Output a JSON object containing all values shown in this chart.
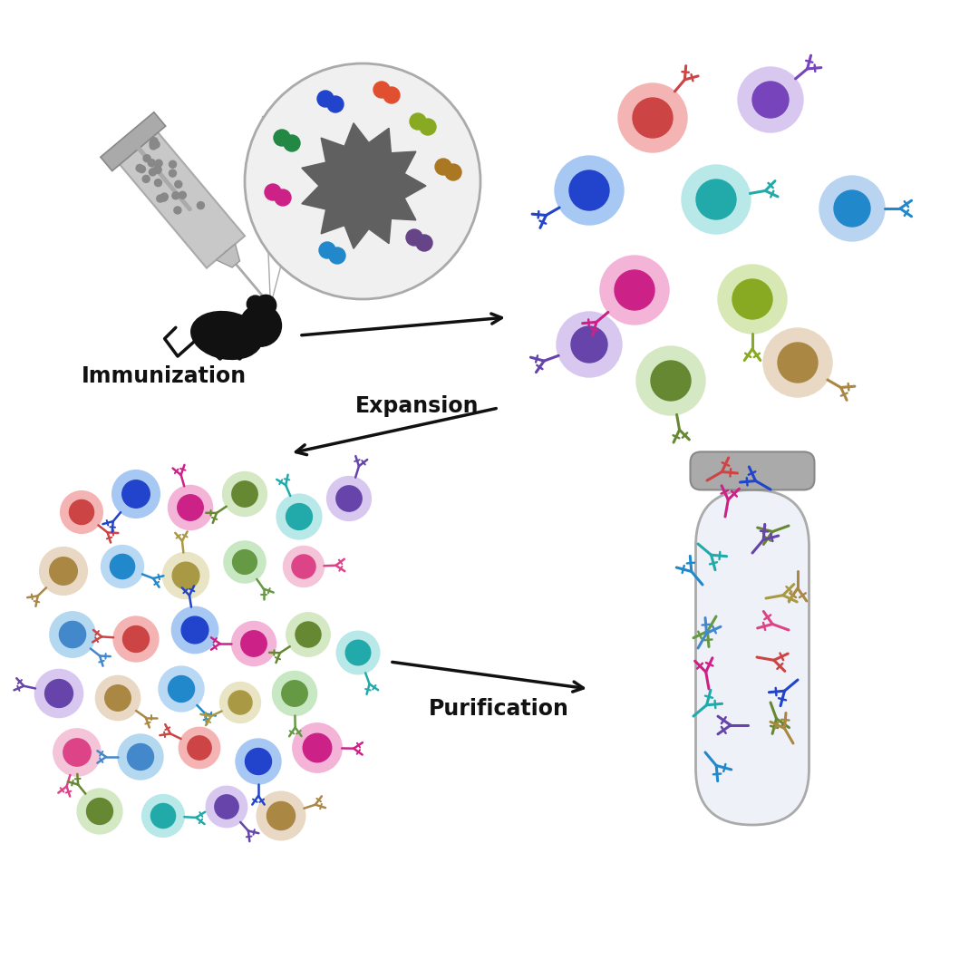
{
  "bg_color": "#ffffff",
  "cell_colors": [
    {
      "outer": "#f4a8a8",
      "inner": "#cc4444",
      "ab": "#cc4444"
    },
    {
      "outer": "#a8c4f4",
      "inner": "#2244cc",
      "ab": "#2244cc"
    },
    {
      "outer": "#f4a8d8",
      "inner": "#cc2288",
      "ab": "#cc2288"
    },
    {
      "outer": "#c8e8a8",
      "inner": "#668822",
      "ab": "#668822"
    },
    {
      "outer": "#b8e8d8",
      "inner": "#228866",
      "ab": "#228866"
    },
    {
      "outer": "#d8c8f0",
      "inner": "#6644aa",
      "ab": "#6644aa"
    },
    {
      "outer": "#f0d4b8",
      "inner": "#aa7744",
      "ab": "#aa7744"
    },
    {
      "outer": "#b8d8f0",
      "inner": "#2288cc",
      "ab": "#2288cc"
    },
    {
      "outer": "#e8d8b8",
      "inner": "#aa9944",
      "ab": "#aa9944"
    },
    {
      "outer": "#d4e8b8",
      "inner": "#669944",
      "ab": "#669944"
    }
  ],
  "antigen_color": "#666666",
  "syringe_color": "#aaaaaa",
  "arrow_color": "#111111",
  "label_immunization": "Immunization",
  "label_expansion": "Expansion",
  "label_purification": "Purification",
  "font_size_label": 16,
  "tube_color": "#cccccc",
  "tube_fill": "#f0f4f8"
}
